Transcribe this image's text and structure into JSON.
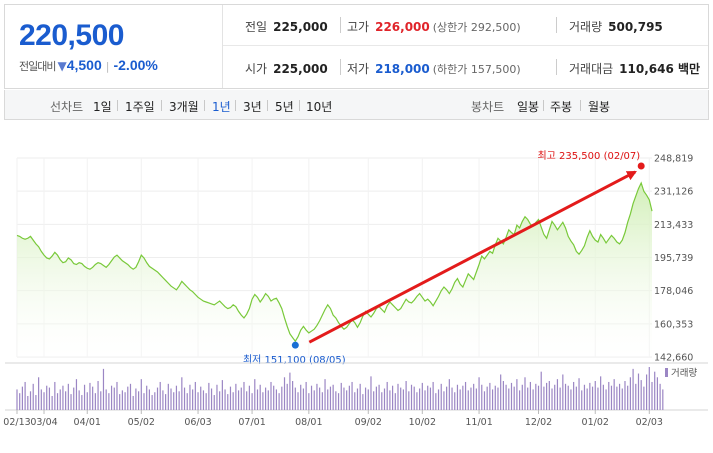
{
  "quote": {
    "price": "220,500",
    "change_label": "전일대비",
    "change_amount": "4,500",
    "change_rate": "-2.00%",
    "prev_close": {
      "label": "전일",
      "value": "225,000"
    },
    "high": {
      "label": "고가",
      "value": "226,000",
      "limit": "(상한가 292,500)"
    },
    "volume": {
      "label": "거래량",
      "value": "500,795"
    },
    "open": {
      "label": "시가",
      "value": "225,000"
    },
    "low": {
      "label": "저가",
      "value": "218,000",
      "limit": "(하한가 157,500)"
    },
    "amount": {
      "label": "거래대금",
      "value": "110,646 백만"
    }
  },
  "period_bar": {
    "line_label": "선차트",
    "line_options": [
      "1일",
      "1주일",
      "3개월",
      "1년",
      "3년",
      "5년",
      "10년"
    ],
    "active_line": "1년",
    "candle_label": "봉차트",
    "candle_options": [
      "일봉",
      "주봉",
      "월봉"
    ]
  },
  "colors": {
    "up": "#e0242a",
    "down": "#1a5ccf",
    "line": "#7ccd3c",
    "area_top": "#d9f2c2",
    "volume_bar": "#9b86c4"
  },
  "chart_data": {
    "type": "area",
    "y_ticks": [
      "248,819",
      "231,126",
      "213,433",
      "195,739",
      "178,046",
      "160,353",
      "142,660"
    ],
    "ylim": [
      142660,
      248819
    ],
    "x_ticks": [
      "02/13",
      "03/04",
      "04/01",
      "05/02",
      "06/03",
      "07/01",
      "08/01",
      "09/02",
      "10/02",
      "11/01",
      "12/02",
      "01/02",
      "02/03"
    ],
    "series": [
      {
        "values": [
          207500,
          207000,
          206000,
          205500,
          206000,
          207000,
          205000,
          203000,
          201500,
          199000,
          197000,
          195500,
          195000,
          196500,
          198500,
          197000,
          194500,
          193000,
          193500,
          195500,
          194500,
          192500,
          192000,
          193000,
          192500,
          191000,
          190000,
          189500,
          190500,
          192000,
          193000,
          192500,
          191500,
          190500,
          192000,
          194000,
          196000,
          197000,
          195500,
          194000,
          193000,
          192000,
          190500,
          189500,
          190500,
          193500,
          197000,
          195500,
          193000,
          191000,
          190000,
          189000,
          188000,
          186500,
          185000,
          183500,
          182000,
          180500,
          179500,
          178500,
          180500,
          183000,
          181500,
          180000,
          178500,
          177500,
          176000,
          174500,
          173500,
          172500,
          172000,
          171500,
          171000,
          170500,
          171500,
          172500,
          171000,
          169500,
          168500,
          169000,
          170500,
          169500,
          167000,
          165000,
          163500,
          165500,
          168500,
          173500,
          176000,
          174500,
          172000,
          174000,
          176500,
          175000,
          172500,
          173500,
          174000,
          171500,
          168500,
          163500,
          159000,
          155000,
          153000,
          151100,
          153500,
          157000,
          159000,
          157000,
          155500,
          156500,
          157500,
          159500,
          162000,
          165000,
          168000,
          170500,
          168500,
          165000,
          163500,
          161000,
          159000,
          157500,
          158500,
          160500,
          162500,
          161000,
          158500,
          161000,
          164500,
          167000,
          165500,
          164000,
          166000,
          168500,
          169500,
          168000,
          166500,
          170000,
          172000,
          170500,
          169000,
          167500,
          168500,
          171000,
          173500,
          172000,
          171500,
          173000,
          175000,
          176500,
          174500,
          172500,
          173500,
          172000,
          170000,
          172500,
          175000,
          178000,
          180000,
          178500,
          176500,
          179000,
          182500,
          184500,
          181500,
          180000,
          183500,
          187000,
          185500,
          184000,
          188000,
          192000,
          196500,
          195000,
          197000,
          199000,
          198000,
          202500,
          206000,
          204500,
          203000,
          206500,
          210500,
          209000,
          208000,
          213000,
          211500,
          215000,
          217500,
          216000,
          213500,
          212500,
          214500,
          216000,
          212000,
          208000,
          206000,
          210500,
          215000,
          213000,
          210500,
          212500,
          214500,
          211500,
          207000,
          204500,
          202500,
          199000,
          197500,
          199500,
          202000,
          206500,
          210000,
          207000,
          205000,
          204000,
          208000,
          206000,
          203500,
          205500,
          207500,
          206000,
          204000,
          203000,
          205000,
          209000,
          214500,
          219000,
          224500,
          228500,
          232500,
          235500,
          231000,
          229000,
          226500,
          220500
        ]
      }
    ],
    "volume_values": [
      22,
      18,
      25,
      30,
      15,
      20,
      28,
      16,
      35,
      22,
      19,
      26,
      24,
      15,
      30,
      18,
      22,
      26,
      20,
      28,
      17,
      24,
      33,
      21,
      16,
      27,
      19,
      29,
      25,
      18,
      31,
      20,
      44,
      22,
      18,
      26,
      24,
      30,
      17,
      21,
      19,
      25,
      28,
      15,
      23,
      20,
      33,
      18,
      26,
      22,
      16,
      19,
      24,
      30,
      21,
      17,
      28,
      23,
      19,
      26,
      20,
      35,
      24,
      18,
      27,
      22,
      30,
      19,
      25,
      21,
      18,
      29,
      23,
      16,
      27,
      20,
      32,
      22,
      17,
      25,
      19,
      28,
      21,
      24,
      30,
      20,
      26,
      18,
      33,
      22,
      27,
      19,
      24,
      21,
      30,
      26,
      22,
      18,
      25,
      35,
      28,
      40,
      31,
      24,
      19,
      27,
      23,
      30,
      18,
      26,
      21,
      28,
      24,
      19,
      33,
      22,
      25,
      27,
      20,
      18,
      29,
      24,
      21,
      26,
      30,
      19,
      23,
      28,
      17,
      24,
      22,
      36,
      20,
      25,
      27,
      19,
      23,
      30,
      21,
      26,
      18,
      28,
      24,
      22,
      31,
      20,
      27,
      25,
      19,
      23,
      29,
      21,
      26,
      24,
      30,
      18,
      22,
      28,
      20,
      25,
      33,
      24,
      19,
      27,
      22,
      26,
      30,
      21,
      24,
      28,
      23,
      35,
      27,
      20,
      25,
      29,
      22,
      26,
      24,
      38,
      31,
      27,
      23,
      29,
      25,
      33,
      21,
      27,
      35,
      24,
      30,
      22,
      28,
      26,
      41,
      25,
      29,
      31,
      23,
      27,
      33,
      24,
      38,
      28,
      26,
      22,
      30,
      25,
      34,
      21,
      27,
      23,
      29,
      25,
      31,
      24,
      36,
      27,
      22,
      30,
      26,
      33,
      25,
      28,
      23,
      31,
      26,
      35,
      44,
      28,
      39,
      32,
      25,
      38,
      46,
      30,
      41,
      35,
      28,
      22
    ]
  },
  "annotations": {
    "max": "최고 235,500 (02/07)",
    "min": "최저 151,100 (08/05)"
  },
  "volume_legend": "거래량"
}
